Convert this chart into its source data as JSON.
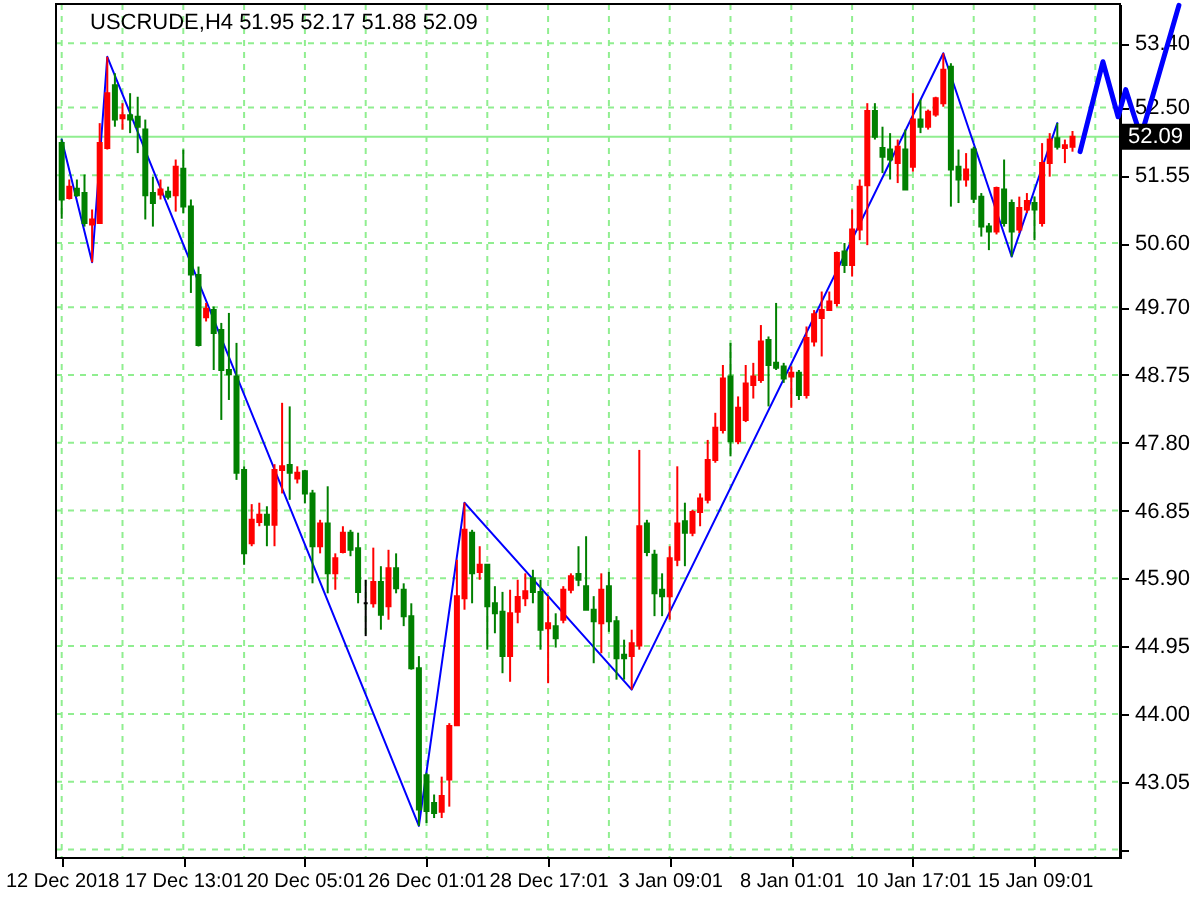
{
  "chart_data": {
    "type": "candlestick",
    "title": "USCRUDE,H4  51.95 52.17 51.88 52.09",
    "categories": [
      "12 Dec 2018",
      null,
      null,
      null,
      null,
      null,
      null,
      null,
      null,
      null,
      null,
      null,
      null,
      null,
      null,
      null,
      "17 Dec 13:01",
      null,
      null,
      null,
      null,
      null,
      null,
      null,
      null,
      null,
      null,
      null,
      null,
      null,
      null,
      null,
      "20 Dec 05:01",
      null,
      null,
      null,
      null,
      null,
      null,
      null,
      null,
      null,
      null,
      null,
      null,
      null,
      null,
      null,
      "26 Dec 01:01",
      null,
      null,
      null,
      null,
      null,
      null,
      null,
      null,
      null,
      null,
      null,
      null,
      null,
      null,
      null,
      "28 Dec 17:01",
      null,
      null,
      null,
      null,
      null,
      null,
      null,
      null,
      null,
      null,
      null,
      null,
      null,
      null,
      null,
      "3 Jan 09:01",
      null,
      null,
      null,
      null,
      null,
      null,
      null,
      null,
      null,
      null,
      null,
      null,
      null,
      null,
      null,
      "8 Jan 01:01",
      null,
      null,
      null,
      null,
      null,
      null,
      null,
      null,
      null,
      null,
      null,
      null,
      null,
      null,
      null,
      "10 Jan 17:01",
      null,
      null,
      null,
      null,
      null,
      null,
      null,
      null,
      null,
      null,
      null,
      null,
      null,
      null,
      null,
      "15 Jan 09:01",
      null,
      null,
      null,
      null,
      null,
      null,
      null,
      null,
      null,
      null,
      null,
      null,
      null,
      null,
      null,
      null,
      null,
      null,
      null
    ],
    "ohlc": [
      [
        52.0,
        52.05,
        50.94,
        51.21
      ],
      [
        51.23,
        51.49,
        51.21,
        51.39
      ],
      [
        51.36,
        51.49,
        51.25,
        51.27
      ],
      [
        51.3,
        51.56,
        50.83,
        50.88
      ],
      [
        50.86,
        51.07,
        50.33,
        50.93
      ],
      [
        50.88,
        52.28,
        50.88,
        52.0
      ],
      [
        51.93,
        53.21,
        51.91,
        52.7
      ],
      [
        52.81,
        52.98,
        52.23,
        52.33
      ],
      [
        52.35,
        52.56,
        52.19,
        52.39
      ],
      [
        52.39,
        52.7,
        52.14,
        52.33
      ],
      [
        52.37,
        52.65,
        51.86,
        52.23
      ],
      [
        52.19,
        52.33,
        50.93,
        51.27
      ],
      [
        51.3,
        51.53,
        50.83,
        51.16
      ],
      [
        51.28,
        51.49,
        51.21,
        51.35
      ],
      [
        51.32,
        51.39,
        51.21,
        51.25
      ],
      [
        51.27,
        51.77,
        51.04,
        51.67
      ],
      [
        51.64,
        51.91,
        51.02,
        51.11
      ],
      [
        51.11,
        51.21,
        49.9,
        50.16
      ],
      [
        50.15,
        50.27,
        49.15,
        49.17
      ],
      [
        49.56,
        49.76,
        49.5,
        49.68
      ],
      [
        49.66,
        49.71,
        48.82,
        49.34
      ],
      [
        49.38,
        49.48,
        48.12,
        48.82
      ],
      [
        48.82,
        49.62,
        48.4,
        48.76
      ],
      [
        48.73,
        49.2,
        47.28,
        47.38
      ],
      [
        47.42,
        47.47,
        46.09,
        46.25
      ],
      [
        46.39,
        46.94,
        46.35,
        46.72
      ],
      [
        46.69,
        46.96,
        46.63,
        46.79
      ],
      [
        46.79,
        46.91,
        46.35,
        46.65
      ],
      [
        46.65,
        47.5,
        46.35,
        47.42
      ],
      [
        47.42,
        48.36,
        47.09,
        47.47
      ],
      [
        47.49,
        48.31,
        47.0,
        47.38
      ],
      [
        47.3,
        47.47,
        47.23,
        47.38
      ],
      [
        47.4,
        47.42,
        46.95,
        47.09
      ],
      [
        47.09,
        47.14,
        45.83,
        46.35
      ],
      [
        46.35,
        46.72,
        46.25,
        46.67
      ],
      [
        46.67,
        47.19,
        45.69,
        45.97
      ],
      [
        45.97,
        46.25,
        45.74,
        46.18
      ],
      [
        46.27,
        46.63,
        46.25,
        46.54
      ],
      [
        46.54,
        46.58,
        46.21,
        46.3
      ],
      [
        46.32,
        46.54,
        45.55,
        45.71
      ],
      [
        45.55,
        45.88,
        45.09,
        45.55
      ],
      [
        45.55,
        46.33,
        45.49,
        45.85
      ],
      [
        45.85,
        46.07,
        45.18,
        45.39
      ],
      [
        45.51,
        46.3,
        45.32,
        46.04
      ],
      [
        46.04,
        46.25,
        45.69,
        45.76
      ],
      [
        45.74,
        45.83,
        45.23,
        45.37
      ],
      [
        45.37,
        45.55,
        44.62,
        44.64
      ],
      [
        44.64,
        44.81,
        42.43,
        42.66
      ],
      [
        43.14,
        43.17,
        42.47,
        42.64
      ],
      [
        42.75,
        42.87,
        42.54,
        42.61
      ],
      [
        42.63,
        43.12,
        42.54,
        42.85
      ],
      [
        43.08,
        43.87,
        42.7,
        43.83
      ],
      [
        43.84,
        46.16,
        43.83,
        45.65
      ],
      [
        45.62,
        46.96,
        45.46,
        46.58
      ],
      [
        46.54,
        46.58,
        45.55,
        45.97
      ],
      [
        45.99,
        46.35,
        45.88,
        46.09
      ],
      [
        46.09,
        46.09,
        44.9,
        45.51
      ],
      [
        45.55,
        45.79,
        45.13,
        45.41
      ],
      [
        45.43,
        45.71,
        44.57,
        44.81
      ],
      [
        44.81,
        45.74,
        44.45,
        45.41
      ],
      [
        45.43,
        45.88,
        45.27,
        45.64
      ],
      [
        45.62,
        45.97,
        45.51,
        45.72
      ],
      [
        45.9,
        46.02,
        45.55,
        45.71
      ],
      [
        45.71,
        45.88,
        44.9,
        45.18
      ],
      [
        45.2,
        45.65,
        44.43,
        45.27
      ],
      [
        45.23,
        45.41,
        44.93,
        45.06
      ],
      [
        45.32,
        45.79,
        45.27,
        45.74
      ],
      [
        45.74,
        45.97,
        45.69,
        45.93
      ],
      [
        45.96,
        46.35,
        45.79,
        45.88
      ],
      [
        45.79,
        46.49,
        45.46,
        45.46
      ],
      [
        45.46,
        45.65,
        44.71,
        45.3
      ],
      [
        45.27,
        45.97,
        44.85,
        45.74
      ],
      [
        45.79,
        45.99,
        45.15,
        45.3
      ],
      [
        45.3,
        45.37,
        44.48,
        44.78
      ],
      [
        44.83,
        45.04,
        44.48,
        44.78
      ],
      [
        44.81,
        45.18,
        44.34,
        44.99
      ],
      [
        44.96,
        47.7,
        44.9,
        46.63
      ],
      [
        46.67,
        46.72,
        46.21,
        46.27
      ],
      [
        46.23,
        46.3,
        45.37,
        45.69
      ],
      [
        45.74,
        45.97,
        45.37,
        45.65
      ],
      [
        45.65,
        46.35,
        45.32,
        46.18
      ],
      [
        46.16,
        47.47,
        46.07,
        46.67
      ],
      [
        46.7,
        46.96,
        46.07,
        46.54
      ],
      [
        46.54,
        46.86,
        46.49,
        46.83
      ],
      [
        46.83,
        47.09,
        46.63,
        47.02
      ],
      [
        47.0,
        47.84,
        46.95,
        47.56
      ],
      [
        47.56,
        48.22,
        47.52,
        48.01
      ],
      [
        47.98,
        48.89,
        47.93,
        48.7
      ],
      [
        48.73,
        49.2,
        47.61,
        47.82
      ],
      [
        47.82,
        48.45,
        47.78,
        48.29
      ],
      [
        48.12,
        48.89,
        48.09,
        48.63
      ],
      [
        48.61,
        48.92,
        48.42,
        48.73
      ],
      [
        48.68,
        49.45,
        48.64,
        49.22
      ],
      [
        49.24,
        49.29,
        48.31,
        48.89
      ],
      [
        48.92,
        49.76,
        48.82,
        48.85
      ],
      [
        48.87,
        48.92,
        48.64,
        48.7
      ],
      [
        48.73,
        48.87,
        48.29,
        48.78
      ],
      [
        48.78,
        48.82,
        48.4,
        48.47
      ],
      [
        48.47,
        49.43,
        48.42,
        49.27
      ],
      [
        49.22,
        49.66,
        49.15,
        49.6
      ],
      [
        49.55,
        49.92,
        49.01,
        49.66
      ],
      [
        49.66,
        49.92,
        49.66,
        49.78
      ],
      [
        49.76,
        50.48,
        49.71,
        50.46
      ],
      [
        50.48,
        50.6,
        50.18,
        50.29
      ],
      [
        50.29,
        51.07,
        50.13,
        50.79
      ],
      [
        50.79,
        51.49,
        50.64,
        51.39
      ],
      [
        51.41,
        52.56,
        50.57,
        52.45
      ],
      [
        52.45,
        52.56,
        52.05,
        52.09
      ],
      [
        51.93,
        52.23,
        51.58,
        51.81
      ],
      [
        51.91,
        52.14,
        51.49,
        51.77
      ],
      [
        51.72,
        52.05,
        51.44,
        51.95
      ],
      [
        51.91,
        52.19,
        51.35,
        51.35
      ],
      [
        51.67,
        52.7,
        51.6,
        52.33
      ],
      [
        52.33,
        52.61,
        52.14,
        52.23
      ],
      [
        52.23,
        52.47,
        52.19,
        52.44
      ],
      [
        52.4,
        52.65,
        52.37,
        52.63
      ],
      [
        52.56,
        53.26,
        52.51,
        53.03
      ],
      [
        53.07,
        53.12,
        51.11,
        51.63
      ],
      [
        51.67,
        51.91,
        51.16,
        51.49
      ],
      [
        51.49,
        51.86,
        51.39,
        51.63
      ],
      [
        51.91,
        51.95,
        51.16,
        51.22
      ],
      [
        51.25,
        51.3,
        50.69,
        50.83
      ],
      [
        50.83,
        50.88,
        50.5,
        50.76
      ],
      [
        50.76,
        51.39,
        50.72,
        51.37
      ],
      [
        51.35,
        51.77,
        50.83,
        50.88
      ],
      [
        51.16,
        51.21,
        50.41,
        50.76
      ],
      [
        50.79,
        51.25,
        50.74,
        51.09
      ],
      [
        51.07,
        51.3,
        51.02,
        51.19
      ],
      [
        51.16,
        51.25,
        50.64,
        51.07
      ],
      [
        50.88,
        52.0,
        50.83,
        51.72
      ],
      [
        51.72,
        52.14,
        51.53,
        52.05
      ],
      [
        52.07,
        52.28,
        51.91,
        51.95
      ],
      [
        51.93,
        52.05,
        51.72,
        51.97
      ],
      [
        51.95,
        52.17,
        51.88,
        52.09
      ],
      null,
      null,
      null,
      null,
      null,
      null,
      null,
      null,
      null,
      null,
      null,
      null,
      null,
      null
    ],
    "colors": [
      "#008000",
      "#ff0000",
      "#008000",
      "#008000",
      "#ff0000",
      "#ff0000",
      "#ff0000",
      "#008000",
      "#ff0000",
      "#008000",
      "#008000",
      "#008000",
      "#008000",
      "#ff0000",
      "#008000",
      "#ff0000",
      "#008000",
      "#008000",
      "#008000",
      "#ff0000",
      "#008000",
      "#008000",
      "#008000",
      "#008000",
      "#008000",
      "#ff0000",
      "#ff0000",
      "#008000",
      "#ff0000",
      "#ff0000",
      "#008000",
      "#ff0000",
      "#008000",
      "#008000",
      "#ff0000",
      "#008000",
      "#ff0000",
      "#ff0000",
      "#008000",
      "#008000",
      "#000000",
      "#ff0000",
      "#008000",
      "#ff0000",
      "#008000",
      "#008000",
      "#008000",
      "#008000",
      "#008000",
      "#008000",
      "#ff0000",
      "#ff0000",
      "#ff0000",
      "#ff0000",
      "#008000",
      "#ff0000",
      "#008000",
      "#008000",
      "#008000",
      "#ff0000",
      "#ff0000",
      "#ff0000",
      "#008000",
      "#008000",
      "#ff0000",
      "#008000",
      "#ff0000",
      "#ff0000",
      "#008000",
      "#008000",
      "#008000",
      "#ff0000",
      "#008000",
      "#008000",
      "#008000",
      "#ff0000",
      "#ff0000",
      "#008000",
      "#008000",
      "#008000",
      "#ff0000",
      "#ff0000",
      "#008000",
      "#ff0000",
      "#ff0000",
      "#ff0000",
      "#ff0000",
      "#ff0000",
      "#008000",
      "#ff0000",
      "#ff0000",
      "#ff0000",
      "#ff0000",
      "#008000",
      "#008000",
      "#008000",
      "#ff0000",
      "#008000",
      "#ff0000",
      "#ff0000",
      "#ff0000",
      "#ff0000",
      "#ff0000",
      "#008000",
      "#ff0000",
      "#ff0000",
      "#ff0000",
      "#008000",
      "#008000",
      "#008000",
      "#ff0000",
      "#008000",
      "#ff0000",
      "#008000",
      "#ff0000",
      "#ff0000",
      "#ff0000",
      "#008000",
      "#008000",
      "#ff0000",
      "#008000",
      "#008000",
      "#008000",
      "#ff0000",
      "#008000",
      "#008000",
      "#ff0000",
      "#ff0000",
      "#008000",
      "#ff0000",
      "#ff0000",
      "#008000",
      "#ff0000",
      "#ff0000",
      null,
      null,
      null,
      null,
      null,
      null,
      null,
      null,
      null,
      null,
      null,
      null,
      null,
      null
    ],
    "series": [
      {
        "type": "line",
        "color": "#0000ff",
        "values": [
          52.05,
          null,
          null,
          null,
          50.33,
          null,
          53.21,
          null,
          null,
          null,
          null,
          null,
          null,
          null,
          null,
          null,
          null,
          null,
          null,
          null,
          null,
          null,
          null,
          null,
          null,
          null,
          null,
          null,
          null,
          null,
          null,
          null,
          null,
          null,
          null,
          null,
          null,
          null,
          null,
          null,
          null,
          null,
          null,
          null,
          null,
          null,
          null,
          42.43,
          null,
          null,
          null,
          null,
          null,
          46.96,
          null,
          null,
          null,
          null,
          null,
          null,
          null,
          null,
          null,
          null,
          null,
          null,
          null,
          null,
          null,
          null,
          null,
          null,
          null,
          null,
          null,
          44.34,
          null,
          null,
          null,
          null,
          null,
          null,
          null,
          null,
          null,
          null,
          null,
          null,
          null,
          null,
          null,
          null,
          null,
          null,
          null,
          null,
          null,
          null,
          null,
          null,
          null,
          null,
          null,
          null,
          null,
          null,
          null,
          null,
          null,
          null,
          null,
          null,
          null,
          null,
          null,
          null,
          53.26,
          null,
          null,
          null,
          null,
          null,
          null,
          null,
          null,
          50.41,
          null,
          null,
          null,
          null,
          null,
          52.28,
          null,
          null,
          null,
          null,
          null,
          null,
          null,
          null,
          null,
          null,
          null,
          null,
          null,
          null,
          null,
          null
        ]
      },
      {
        "type": "line",
        "color": "#0000ff",
        "values": [
          null,
          null,
          null,
          null,
          null,
          null,
          null,
          null,
          null,
          null,
          null,
          null,
          null,
          null,
          null,
          null,
          null,
          null,
          null,
          null,
          null,
          null,
          null,
          null,
          null,
          null,
          null,
          null,
          null,
          null,
          null,
          null,
          null,
          null,
          null,
          null,
          null,
          null,
          null,
          null,
          null,
          null,
          null,
          null,
          null,
          null,
          null,
          null,
          null,
          null,
          null,
          null,
          null,
          null,
          null,
          null,
          null,
          null,
          null,
          null,
          null,
          null,
          null,
          null,
          null,
          null,
          null,
          null,
          null,
          null,
          null,
          null,
          null,
          null,
          null,
          null,
          null,
          null,
          null,
          null,
          null,
          null,
          null,
          null,
          null,
          null,
          null,
          null,
          null,
          null,
          null,
          null,
          null,
          null,
          null,
          null,
          null,
          null,
          null,
          null,
          null,
          null,
          null,
          null,
          null,
          null,
          null,
          null,
          null,
          null,
          null,
          null,
          null,
          null,
          null,
          null,
          null,
          null,
          null,
          null,
          null,
          null,
          null,
          null,
          null,
          null,
          null,
          null,
          null,
          null,
          null,
          null,
          null,
          null,
          51.88,
          null,
          null,
          53.14,
          null,
          52.37,
          52.75,
          null,
          52.09,
          null,
          null,
          null,
          null,
          53.93
        ]
      }
    ],
    "ylim": [
      41.98,
      53.95
    ],
    "yticks": [
      {
        "value": 53.4,
        "label": "53.40"
      },
      {
        "value": 52.5,
        "label": "52.50"
      },
      51.55,
      {
        "value": 50.6,
        "label": "50.60"
      },
      {
        "value": 49.7,
        "label": "49.70"
      },
      48.75,
      {
        "value": 47.8,
        "label": "47.80"
      },
      46.85,
      {
        "value": 45.9,
        "label": "45.90"
      },
      44.95,
      {
        "value": 44.0,
        "label": "44.00"
      },
      43.05,
      {
        "value": 42.1,
        "label": null
      }
    ],
    "grid": true,
    "ref_lines": [
      {
        "axis": "y",
        "value": 52.09,
        "label": "52.09",
        "color": "#90ee90"
      }
    ]
  }
}
